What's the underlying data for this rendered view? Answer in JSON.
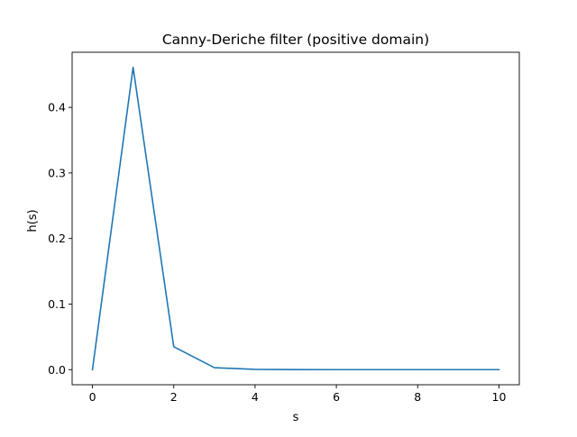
{
  "chart_data": {
    "type": "line",
    "title": "Canny-Deriche filter (positive domain)",
    "xlabel": "s",
    "ylabel": "h(s)",
    "xlim": [
      -0.5,
      10.5
    ],
    "ylim": [
      -0.023,
      0.484
    ],
    "xticks": [
      0,
      2,
      4,
      6,
      8,
      10
    ],
    "xtick_labels": [
      "0",
      "2",
      "4",
      "6",
      "8",
      "10"
    ],
    "yticks": [
      0.0,
      0.1,
      0.2,
      0.3,
      0.4
    ],
    "ytick_labels": [
      "0.0",
      "0.1",
      "0.2",
      "0.3",
      "0.4"
    ],
    "grid": false,
    "legend": "none",
    "series": [
      {
        "color": "#1f77b4",
        "x": [
          0,
          1,
          2,
          3,
          4,
          5,
          6,
          7,
          8,
          9,
          10
        ],
        "y": [
          0.0,
          0.461,
          0.035,
          0.003,
          0.0005,
          0.0001,
          0.0,
          0.0,
          0.0,
          0.0,
          0.0
        ]
      }
    ]
  }
}
